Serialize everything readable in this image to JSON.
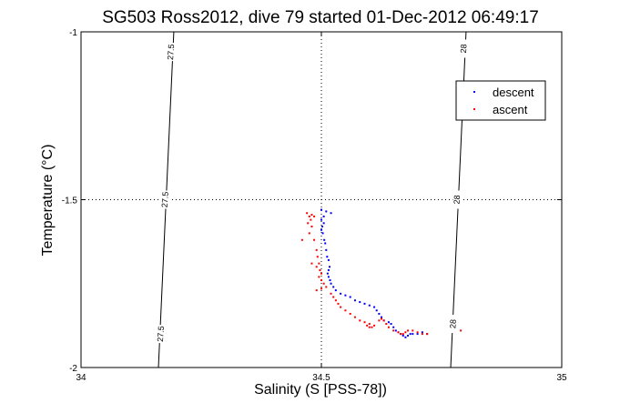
{
  "chart_data": {
    "type": "scatter",
    "title": "SG503 Ross2012, dive 79 started 01-Dec-2012 06:49:17",
    "xlabel": "Salinity (S [PSS-78])",
    "ylabel": "Temperature (°C)",
    "xlim": [
      34,
      35
    ],
    "ylim": [
      -2,
      -1
    ],
    "x_ticks": [
      34,
      34.5,
      35
    ],
    "x_tick_labels": [
      "34",
      "34.5",
      "35"
    ],
    "y_ticks": [
      -2,
      -1.5,
      -1
    ],
    "y_tick_labels": [
      "-2",
      "-1.5",
      "-1"
    ],
    "grid": true,
    "legend_position": "top-right",
    "isopycnals": [
      {
        "label": "27.5",
        "points": [
          [
            34.161,
            -2
          ],
          [
            34.193,
            -1
          ]
        ],
        "label_positions": [
          [
            34.167,
            -1.9
          ],
          [
            34.176,
            -1.5
          ],
          [
            34.188,
            -1.06
          ]
        ]
      },
      {
        "label": "28",
        "points": [
          [
            34.769,
            -2
          ],
          [
            34.801,
            -1
          ]
        ],
        "label_positions": [
          [
            34.775,
            -1.87
          ],
          [
            34.783,
            -1.5
          ],
          [
            34.797,
            -1.05
          ]
        ]
      }
    ],
    "series": [
      {
        "name": "descent",
        "color": "#0000ff",
        "points": [
          [
            34.5,
            -1.53
          ],
          [
            34.51,
            -1.535
          ],
          [
            34.52,
            -1.54
          ],
          [
            34.505,
            -1.55
          ],
          [
            34.5,
            -1.56
          ],
          [
            34.505,
            -1.57
          ],
          [
            34.502,
            -1.58
          ],
          [
            34.5,
            -1.59
          ],
          [
            34.503,
            -1.6
          ],
          [
            34.506,
            -1.62
          ],
          [
            34.508,
            -1.63
          ],
          [
            34.51,
            -1.65
          ],
          [
            34.512,
            -1.67
          ],
          [
            34.515,
            -1.68
          ],
          [
            34.517,
            -1.7
          ],
          [
            34.515,
            -1.71
          ],
          [
            34.513,
            -1.72
          ],
          [
            34.515,
            -1.73
          ],
          [
            34.518,
            -1.74
          ],
          [
            34.52,
            -1.75
          ],
          [
            34.525,
            -1.76
          ],
          [
            34.53,
            -1.77
          ],
          [
            34.54,
            -1.78
          ],
          [
            34.55,
            -1.785
          ],
          [
            34.56,
            -1.79
          ],
          [
            34.57,
            -1.8
          ],
          [
            34.58,
            -1.805
          ],
          [
            34.59,
            -1.81
          ],
          [
            34.6,
            -1.815
          ],
          [
            34.61,
            -1.82
          ],
          [
            34.615,
            -1.83
          ],
          [
            34.62,
            -1.84
          ],
          [
            34.625,
            -1.85
          ],
          [
            34.63,
            -1.86
          ],
          [
            34.64,
            -1.865
          ],
          [
            34.645,
            -1.87
          ],
          [
            34.65,
            -1.88
          ],
          [
            34.655,
            -1.89
          ],
          [
            34.66,
            -1.895
          ],
          [
            34.665,
            -1.9
          ],
          [
            34.67,
            -1.905
          ],
          [
            34.675,
            -1.91
          ],
          [
            34.68,
            -1.905
          ],
          [
            34.685,
            -1.9
          ],
          [
            34.69,
            -1.9
          ],
          [
            34.7,
            -1.9
          ],
          [
            34.71,
            -1.895
          ],
          [
            34.72,
            -1.9
          ]
        ]
      },
      {
        "name": "ascent",
        "color": "#ff0000",
        "points": [
          [
            34.47,
            -1.54
          ],
          [
            34.475,
            -1.55
          ],
          [
            34.48,
            -1.545
          ],
          [
            34.485,
            -1.55
          ],
          [
            34.478,
            -1.56
          ],
          [
            34.472,
            -1.57
          ],
          [
            34.48,
            -1.58
          ],
          [
            34.475,
            -1.6
          ],
          [
            34.485,
            -1.62
          ],
          [
            34.49,
            -1.65
          ],
          [
            34.492,
            -1.67
          ],
          [
            34.495,
            -1.69
          ],
          [
            34.49,
            -1.7
          ],
          [
            34.497,
            -1.71
          ],
          [
            34.5,
            -1.72
          ],
          [
            34.495,
            -1.73
          ],
          [
            34.5,
            -1.74
          ],
          [
            34.505,
            -1.75
          ],
          [
            34.51,
            -1.76
          ],
          [
            34.5,
            -1.765
          ],
          [
            34.49,
            -1.77
          ],
          [
            34.52,
            -1.78
          ],
          [
            34.525,
            -1.79
          ],
          [
            34.53,
            -1.8
          ],
          [
            34.535,
            -1.81
          ],
          [
            34.54,
            -1.82
          ],
          [
            34.55,
            -1.83
          ],
          [
            34.56,
            -1.84
          ],
          [
            34.57,
            -1.85
          ],
          [
            34.58,
            -1.86
          ],
          [
            34.59,
            -1.865
          ],
          [
            34.6,
            -1.87
          ],
          [
            34.61,
            -1.875
          ],
          [
            34.62,
            -1.86
          ],
          [
            34.625,
            -1.855
          ],
          [
            34.63,
            -1.86
          ],
          [
            34.635,
            -1.87
          ],
          [
            34.64,
            -1.88
          ],
          [
            34.65,
            -1.89
          ],
          [
            34.66,
            -1.895
          ],
          [
            34.665,
            -1.9
          ],
          [
            34.67,
            -1.9
          ],
          [
            34.675,
            -1.895
          ],
          [
            34.68,
            -1.89
          ],
          [
            34.69,
            -1.89
          ],
          [
            34.7,
            -1.895
          ],
          [
            34.71,
            -1.9
          ],
          [
            34.72,
            -1.9
          ],
          [
            34.6,
            -1.88
          ],
          [
            34.595,
            -1.875
          ],
          [
            34.605,
            -1.88
          ],
          [
            34.79,
            -1.89
          ],
          [
            34.46,
            -1.62
          ],
          [
            34.48,
            -1.69
          ]
        ]
      }
    ]
  }
}
